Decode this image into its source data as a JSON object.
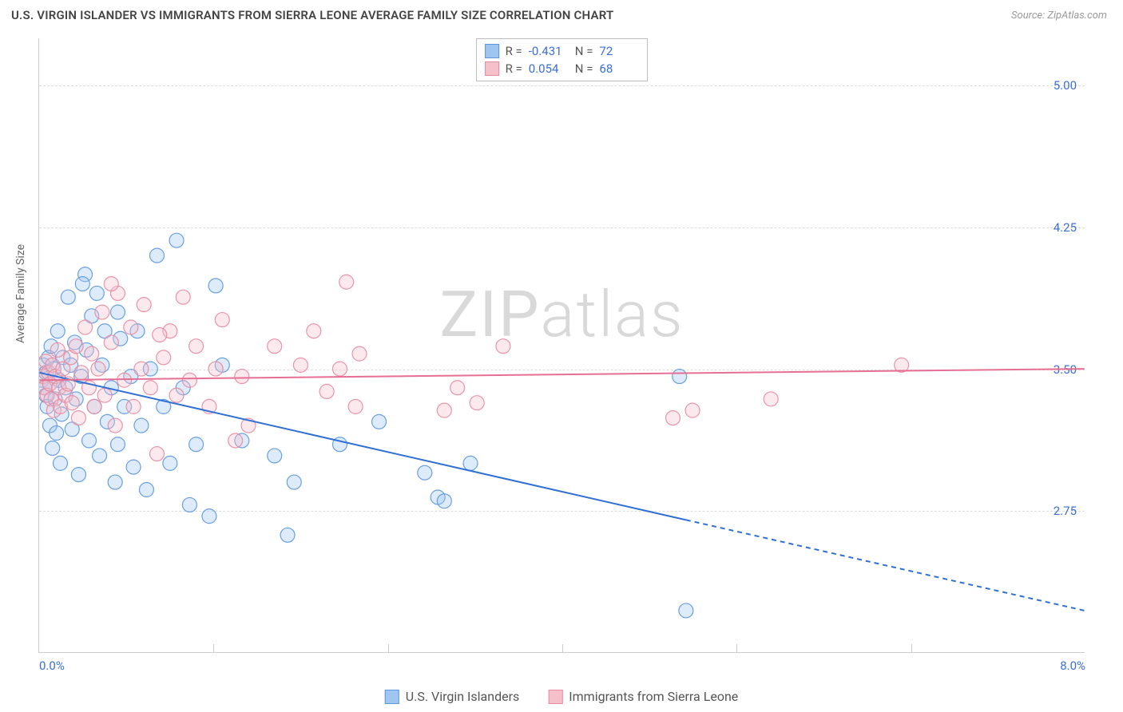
{
  "header": {
    "title": "U.S. VIRGIN ISLANDER VS IMMIGRANTS FROM SIERRA LEONE AVERAGE FAMILY SIZE CORRELATION CHART",
    "source": "Source: ZipAtlas.com"
  },
  "chart": {
    "type": "scatter",
    "ylabel": "Average Family Size",
    "background_color": "#ffffff",
    "grid_color": "#dddddd",
    "axis_color": "#cccccc",
    "tick_color": "#3b6fd6",
    "x": {
      "min": 0.0,
      "max": 8.0,
      "label_min": "0.0%",
      "label_max": "8.0%",
      "minor_ticks": [
        1.33,
        2.67,
        4.0,
        5.33,
        6.67
      ]
    },
    "y": {
      "min": 2.0,
      "max": 5.25,
      "ticks": [
        2.75,
        3.5,
        4.25,
        5.0
      ],
      "tick_labels": [
        "2.75",
        "3.50",
        "4.25",
        "5.00"
      ]
    },
    "watermark": "ZIPatlas",
    "marker_radius": 9,
    "marker_opacity_fill": 0.35,
    "marker_opacity_stroke": 0.9,
    "marker_stroke_width": 1.2,
    "trend_line_width": 2,
    "series": [
      {
        "key": "usvi",
        "label": "U.S. Virgin Islanders",
        "color_fill": "#9fc5f0",
        "color_stroke": "#5a97de",
        "trend_color": "#2f6fd6",
        "trend": {
          "x1": 0.0,
          "y1": 3.48,
          "x2": 4.95,
          "y2": 2.7,
          "x2_ext": 8.0,
          "y2_ext": 2.22,
          "dashed_from": 4.95
        },
        "legend_stats": {
          "r_label": "R =",
          "r_value": "-0.431",
          "n_label": "N =",
          "n_value": "72"
        },
        "points": [
          [
            0.02,
            3.44
          ],
          [
            0.03,
            3.52
          ],
          [
            0.04,
            3.4
          ],
          [
            0.05,
            3.48
          ],
          [
            0.05,
            3.36
          ],
          [
            0.06,
            3.3
          ],
          [
            0.07,
            3.56
          ],
          [
            0.08,
            3.42
          ],
          [
            0.08,
            3.2
          ],
          [
            0.09,
            3.62
          ],
          [
            0.1,
            3.08
          ],
          [
            0.11,
            3.5
          ],
          [
            0.12,
            3.34
          ],
          [
            0.13,
            3.16
          ],
          [
            0.14,
            3.7
          ],
          [
            0.15,
            3.44
          ],
          [
            0.16,
            3.0
          ],
          [
            0.17,
            3.26
          ],
          [
            0.18,
            3.56
          ],
          [
            0.2,
            3.4
          ],
          [
            0.22,
            3.88
          ],
          [
            0.24,
            3.52
          ],
          [
            0.25,
            3.18
          ],
          [
            0.27,
            3.64
          ],
          [
            0.28,
            3.34
          ],
          [
            0.3,
            2.94
          ],
          [
            0.32,
            3.46
          ],
          [
            0.35,
            4.0
          ],
          [
            0.36,
            3.6
          ],
          [
            0.38,
            3.12
          ],
          [
            0.4,
            3.78
          ],
          [
            0.42,
            3.3
          ],
          [
            0.44,
            3.9
          ],
          [
            0.46,
            3.04
          ],
          [
            0.48,
            3.52
          ],
          [
            0.5,
            3.7
          ],
          [
            0.52,
            3.22
          ],
          [
            0.55,
            3.4
          ],
          [
            0.58,
            2.9
          ],
          [
            0.6,
            3.1
          ],
          [
            0.62,
            3.66
          ],
          [
            0.65,
            3.3
          ],
          [
            0.7,
            3.46
          ],
          [
            0.72,
            2.98
          ],
          [
            0.75,
            3.7
          ],
          [
            0.78,
            3.2
          ],
          [
            0.82,
            2.86
          ],
          [
            0.85,
            3.5
          ],
          [
            0.9,
            4.1
          ],
          [
            0.95,
            3.3
          ],
          [
            1.0,
            3.0
          ],
          [
            1.05,
            4.18
          ],
          [
            1.1,
            3.4
          ],
          [
            1.15,
            2.78
          ],
          [
            1.2,
            3.1
          ],
          [
            1.3,
            2.72
          ],
          [
            1.35,
            3.94
          ],
          [
            1.4,
            3.52
          ],
          [
            1.55,
            3.12
          ],
          [
            1.8,
            3.04
          ],
          [
            1.9,
            2.62
          ],
          [
            1.95,
            2.9
          ],
          [
            2.3,
            3.1
          ],
          [
            2.6,
            3.22
          ],
          [
            2.95,
            2.95
          ],
          [
            3.05,
            2.82
          ],
          [
            3.1,
            2.8
          ],
          [
            3.3,
            3.0
          ],
          [
            4.9,
            3.46
          ],
          [
            4.95,
            2.22
          ],
          [
            0.6,
            3.8
          ],
          [
            0.33,
            3.95
          ]
        ]
      },
      {
        "key": "sl",
        "label": "Immigrants from Sierra Leone",
        "color_fill": "#f6c0cb",
        "color_stroke": "#e78aa0",
        "trend_color": "#e66f94",
        "trend": {
          "x1": 0.0,
          "y1": 3.44,
          "x2": 8.0,
          "y2": 3.5,
          "x2_ext": 8.0,
          "y2_ext": 3.5,
          "dashed_from": 8.0
        },
        "legend_stats": {
          "r_label": "R =",
          "r_value": "0.054",
          "n_label": "N =",
          "n_value": "68"
        },
        "points": [
          [
            0.03,
            3.46
          ],
          [
            0.04,
            3.4
          ],
          [
            0.05,
            3.54
          ],
          [
            0.06,
            3.36
          ],
          [
            0.07,
            3.48
          ],
          [
            0.08,
            3.42
          ],
          [
            0.09,
            3.34
          ],
          [
            0.1,
            3.52
          ],
          [
            0.11,
            3.28
          ],
          [
            0.12,
            3.46
          ],
          [
            0.14,
            3.6
          ],
          [
            0.15,
            3.4
          ],
          [
            0.16,
            3.3
          ],
          [
            0.18,
            3.5
          ],
          [
            0.2,
            3.36
          ],
          [
            0.22,
            3.42
          ],
          [
            0.24,
            3.56
          ],
          [
            0.25,
            3.32
          ],
          [
            0.28,
            3.62
          ],
          [
            0.3,
            3.24
          ],
          [
            0.32,
            3.48
          ],
          [
            0.35,
            3.72
          ],
          [
            0.38,
            3.4
          ],
          [
            0.4,
            3.58
          ],
          [
            0.42,
            3.3
          ],
          [
            0.45,
            3.5
          ],
          [
            0.48,
            3.8
          ],
          [
            0.5,
            3.36
          ],
          [
            0.55,
            3.64
          ],
          [
            0.58,
            3.2
          ],
          [
            0.6,
            3.9
          ],
          [
            0.65,
            3.44
          ],
          [
            0.7,
            3.72
          ],
          [
            0.72,
            3.3
          ],
          [
            0.78,
            3.5
          ],
          [
            0.8,
            3.84
          ],
          [
            0.85,
            3.4
          ],
          [
            0.9,
            3.05
          ],
          [
            0.95,
            3.56
          ],
          [
            1.0,
            3.7
          ],
          [
            1.05,
            3.36
          ],
          [
            1.1,
            3.88
          ],
          [
            1.15,
            3.44
          ],
          [
            1.2,
            3.62
          ],
          [
            1.3,
            3.3
          ],
          [
            1.35,
            3.5
          ],
          [
            1.4,
            3.76
          ],
          [
            1.5,
            3.12
          ],
          [
            1.55,
            3.46
          ],
          [
            1.6,
            3.2
          ],
          [
            1.8,
            3.62
          ],
          [
            2.0,
            3.52
          ],
          [
            2.1,
            3.7
          ],
          [
            2.2,
            3.38
          ],
          [
            2.3,
            3.5
          ],
          [
            2.35,
            3.96
          ],
          [
            2.42,
            3.3
          ],
          [
            2.45,
            3.58
          ],
          [
            3.1,
            3.28
          ],
          [
            3.2,
            3.4
          ],
          [
            3.35,
            3.32
          ],
          [
            3.55,
            3.62
          ],
          [
            4.85,
            3.24
          ],
          [
            5.0,
            3.28
          ],
          [
            5.6,
            3.34
          ],
          [
            6.6,
            3.52
          ],
          [
            0.55,
            3.95
          ],
          [
            0.92,
            3.68
          ]
        ]
      }
    ]
  },
  "legend_bottom": {
    "series1": "U.S. Virgin Islanders",
    "series2": "Immigrants from Sierra Leone"
  }
}
